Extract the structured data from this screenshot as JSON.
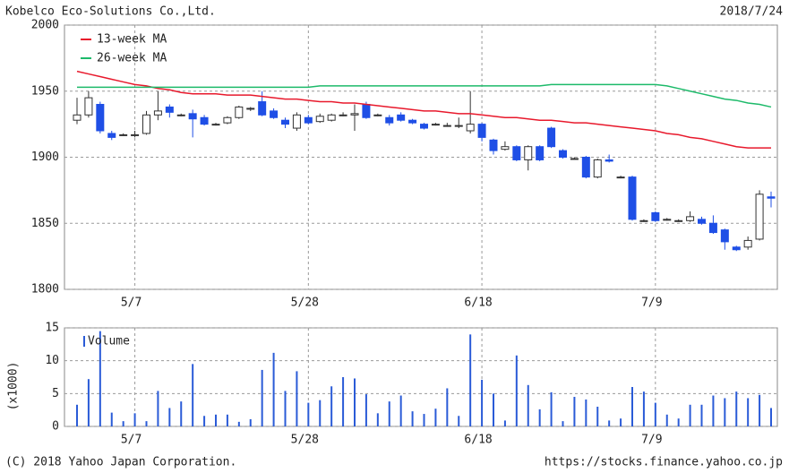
{
  "header": {
    "title": "Kobelco Eco-Solutions Co.,Ltd.",
    "date": "2018/7/24"
  },
  "footer": {
    "copyright": "(C) 2018 Yahoo Japan Corporation.",
    "url": "https://stocks.finance.yahoo.co.jp"
  },
  "chart_data": [
    {
      "type": "candlestick",
      "categories": [
        null,
        null,
        null,
        null,
        null,
        "5/7",
        null,
        null,
        null,
        null,
        null,
        null,
        null,
        null,
        null,
        null,
        null,
        null,
        null,
        null,
        "5/28",
        null,
        null,
        null,
        null,
        null,
        null,
        null,
        null,
        null,
        null,
        null,
        null,
        null,
        null,
        "6/18",
        null,
        null,
        null,
        null,
        null,
        null,
        null,
        null,
        null,
        null,
        null,
        null,
        null,
        null,
        "7/9",
        null,
        null,
        null,
        null,
        null,
        null,
        null,
        null,
        null,
        null
      ],
      "open": [
        1928,
        1932,
        1940,
        1918,
        1917,
        1917,
        1918,
        1932,
        1938,
        1932,
        1933,
        1930,
        1925,
        1926,
        1930,
        1937,
        1942,
        1935,
        1928,
        1922,
        1930,
        1927,
        1928,
        1932,
        1932,
        1940,
        1932,
        1930,
        1932,
        1928,
        1925,
        1925,
        1924,
        1924,
        1920,
        1925,
        1913,
        1906,
        1908,
        1898,
        1908,
        1922,
        1905,
        1899,
        1900,
        1885,
        1898,
        1885,
        1885,
        1852,
        1858,
        1853,
        1852,
        1852,
        1853,
        1850,
        1845,
        1832,
        1832,
        1838,
        1870
      ],
      "high": [
        1945,
        1950,
        1942,
        1920,
        1918,
        1920,
        1935,
        1950,
        1940,
        1933,
        1936,
        1932,
        1926,
        1931,
        1939,
        1938,
        1950,
        1937,
        1930,
        1934,
        1932,
        1933,
        1933,
        1934,
        1940,
        1942,
        1933,
        1932,
        1934,
        1929,
        1926,
        1926,
        1926,
        1930,
        1950,
        1926,
        1914,
        1912,
        1909,
        1909,
        1909,
        1923,
        1906,
        1900,
        1901,
        1899,
        1902,
        1886,
        1886,
        1853,
        1859,
        1854,
        1853,
        1859,
        1855,
        1856,
        1846,
        1833,
        1840,
        1875,
        1874
      ],
      "low": [
        1925,
        1930,
        1918,
        1913,
        1916,
        1915,
        1917,
        1928,
        1930,
        1931,
        1915,
        1924,
        1924,
        1925,
        1929,
        1935,
        1931,
        1929,
        1922,
        1920,
        1925,
        1926,
        1927,
        1931,
        1920,
        1929,
        1931,
        1924,
        1927,
        1925,
        1921,
        1924,
        1923,
        1922,
        1918,
        1912,
        1902,
        1905,
        1897,
        1890,
        1897,
        1907,
        1899,
        1898,
        1884,
        1884,
        1896,
        1884,
        1852,
        1851,
        1851,
        1852,
        1851,
        1851,
        1849,
        1842,
        1830,
        1829,
        1830,
        1837,
        1862
      ],
      "close": [
        1932,
        1945,
        1920,
        1915,
        1917,
        1917,
        1932,
        1935,
        1934,
        1932,
        1929,
        1925,
        1925,
        1930,
        1938,
        1937,
        1932,
        1930,
        1925,
        1932,
        1926,
        1931,
        1932,
        1932,
        1933,
        1930,
        1932,
        1926,
        1928,
        1926,
        1922,
        1925,
        1924,
        1924,
        1925,
        1915,
        1905,
        1908,
        1898,
        1908,
        1898,
        1908,
        1900,
        1899,
        1885,
        1898,
        1897,
        1885,
        1853,
        1852,
        1852,
        1853,
        1852,
        1855,
        1850,
        1843,
        1836,
        1830,
        1837,
        1872,
        1869
      ],
      "up_color": "#ffffff",
      "down_color": "#1f4fe6",
      "edge_color": "#333333",
      "series": [
        {
          "name": "13-week MA",
          "color": "#e8192c",
          "values": [
            1965,
            1963,
            1961,
            1959,
            1957,
            1955,
            1954,
            1952,
            1951,
            1949,
            1948,
            1948,
            1948,
            1947,
            1947,
            1947,
            1946,
            1945,
            1944,
            1944,
            1943,
            1942,
            1942,
            1941,
            1941,
            1940,
            1939,
            1938,
            1937,
            1936,
            1935,
            1935,
            1934,
            1933,
            1933,
            1932,
            1931,
            1930,
            1930,
            1929,
            1928,
            1928,
            1927,
            1926,
            1926,
            1925,
            1924,
            1923,
            1922,
            1921,
            1920,
            1918,
            1917,
            1915,
            1914,
            1912,
            1910,
            1908,
            1907,
            1907,
            1907
          ]
        },
        {
          "name": "26-week MA",
          "color": "#1dba6a",
          "values": [
            1953,
            1953,
            1953,
            1953,
            1953,
            1953,
            1953,
            1953,
            1953,
            1953,
            1953,
            1953,
            1953,
            1953,
            1953,
            1953,
            1953,
            1953,
            1953,
            1953,
            1953,
            1954,
            1954,
            1954,
            1954,
            1954,
            1954,
            1954,
            1954,
            1954,
            1954,
            1954,
            1954,
            1954,
            1954,
            1954,
            1954,
            1954,
            1954,
            1954,
            1954,
            1955,
            1955,
            1955,
            1955,
            1955,
            1955,
            1955,
            1955,
            1955,
            1955,
            1954,
            1952,
            1950,
            1948,
            1946,
            1944,
            1943,
            1941,
            1940,
            1938
          ]
        }
      ],
      "ylim": [
        1800,
        2000
      ],
      "yticks": [
        1800,
        1850,
        1900,
        1950,
        2000
      ],
      "grid": true
    },
    {
      "type": "bar",
      "y_label": "(x1000)",
      "categories": [
        null,
        null,
        null,
        null,
        null,
        "5/7",
        null,
        null,
        null,
        null,
        null,
        null,
        null,
        null,
        null,
        null,
        null,
        null,
        null,
        null,
        "5/28",
        null,
        null,
        null,
        null,
        null,
        null,
        null,
        null,
        null,
        null,
        null,
        null,
        null,
        null,
        "6/18",
        null,
        null,
        null,
        null,
        null,
        null,
        null,
        null,
        null,
        null,
        null,
        null,
        null,
        null,
        "7/9",
        null,
        null,
        null,
        null,
        null,
        null,
        null,
        null,
        null,
        null
      ],
      "series": [
        {
          "name": "Volume",
          "color": "#2a5bd7",
          "values": [
            3.3,
            7.2,
            14.5,
            2.1,
            0.8,
            2.0,
            0.8,
            5.4,
            2.8,
            3.8,
            9.5,
            1.6,
            1.8,
            1.8,
            0.7,
            1.1,
            8.6,
            11.2,
            5.4,
            8.4,
            3.6,
            4.0,
            6.1,
            7.5,
            7.3,
            4.9,
            2.0,
            3.8,
            4.7,
            2.3,
            1.9,
            2.7,
            5.8,
            1.6,
            14.0,
            7.1,
            5.0,
            0.9,
            10.8,
            6.3,
            2.6,
            5.2,
            0.8,
            4.5,
            4.1,
            3.0,
            0.9,
            1.2,
            6.0,
            5.3,
            3.6,
            1.8,
            1.2,
            3.3,
            3.3,
            4.7,
            4.3,
            5.3,
            4.3,
            4.8,
            2.8
          ]
        }
      ],
      "ylim": [
        0,
        15
      ],
      "yticks": [
        0,
        5,
        10,
        15
      ],
      "grid": true
    }
  ]
}
